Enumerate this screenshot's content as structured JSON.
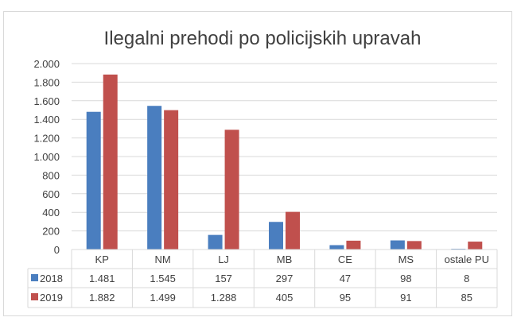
{
  "chart_data": {
    "type": "bar",
    "title": "Ilegalni prehodi po policijskih upravah",
    "categories": [
      "KP",
      "NM",
      "LJ",
      "MB",
      "CE",
      "MS",
      "ostale PU"
    ],
    "series": [
      {
        "name": "2018",
        "color": "#4a7ebf",
        "values": [
          1481,
          1545,
          157,
          297,
          47,
          98,
          8
        ],
        "labels": [
          "1.481",
          "1.545",
          "157",
          "297",
          "47",
          "98",
          "8"
        ]
      },
      {
        "name": "2019",
        "color": "#c0504d",
        "values": [
          1882,
          1499,
          1288,
          405,
          95,
          91,
          85
        ],
        "labels": [
          "1.882",
          "1.499",
          "1.288",
          "405",
          "95",
          "91",
          "85"
        ]
      }
    ],
    "ylim": [
      0,
      2000
    ],
    "yticks": [
      0,
      200,
      400,
      600,
      800,
      1000,
      1200,
      1400,
      1600,
      1800,
      2000
    ],
    "ytick_labels": [
      "0",
      "200",
      "400",
      "600",
      "800",
      "1.000",
      "1.200",
      "1.400",
      "1.600",
      "1.800",
      "2.000"
    ],
    "grid": true,
    "legend": "data-table",
    "xlabel": "",
    "ylabel": ""
  }
}
